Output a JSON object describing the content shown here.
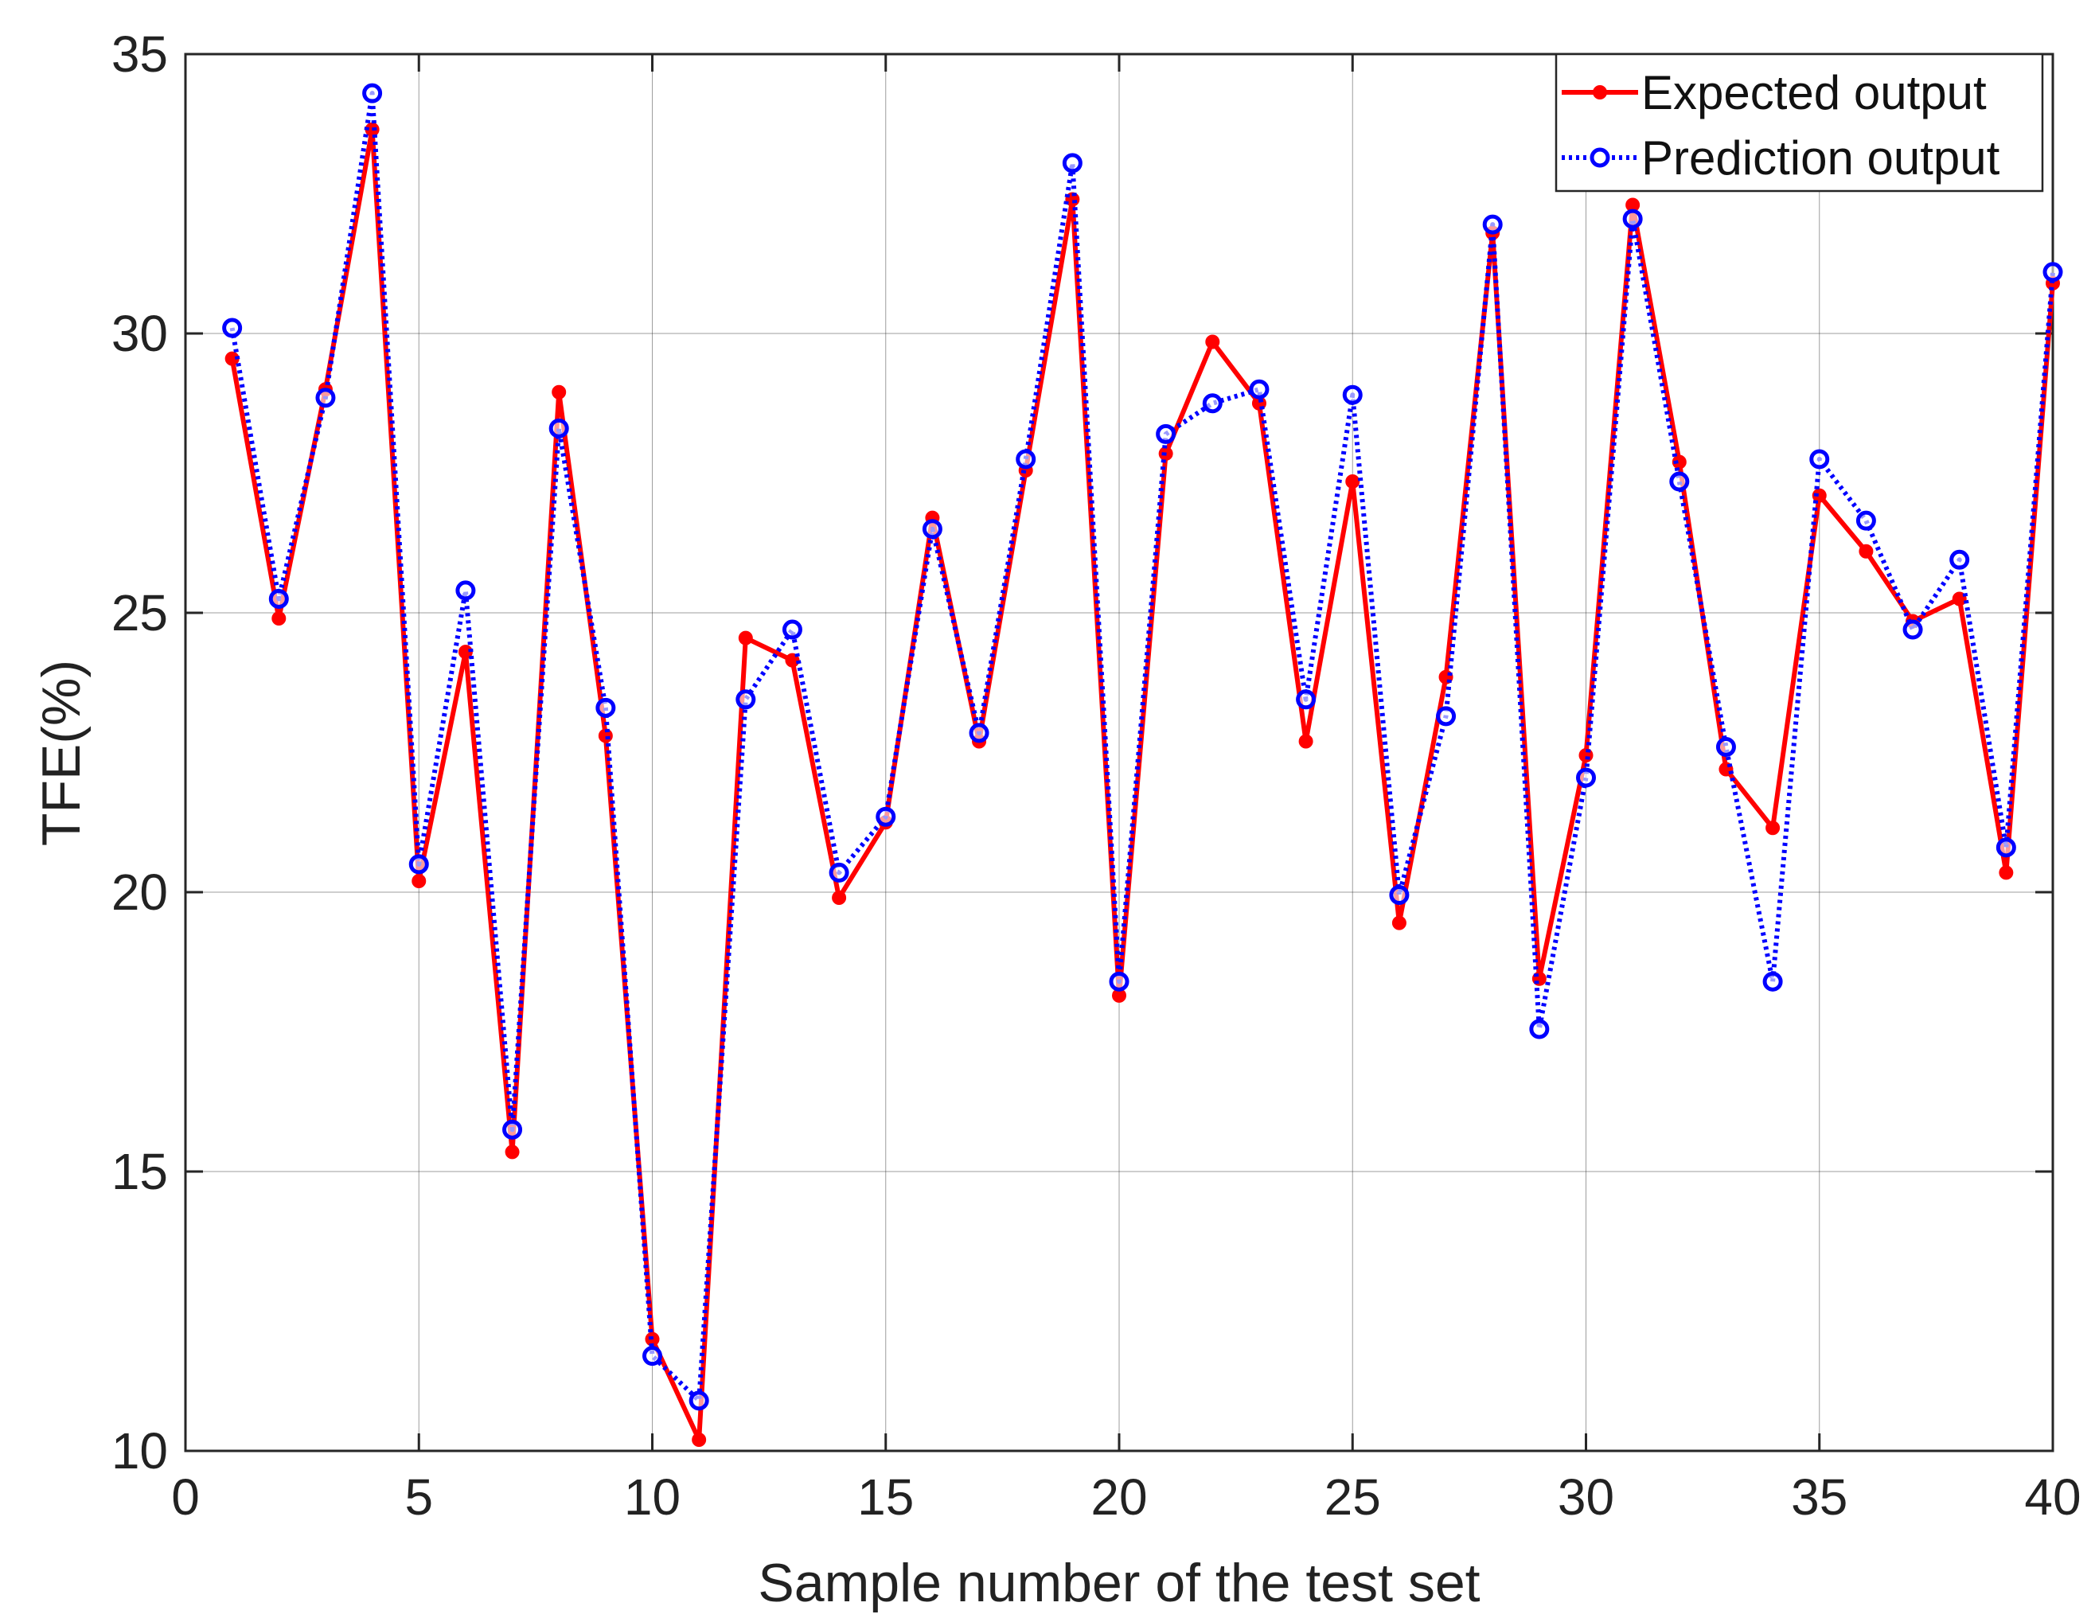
{
  "chart_data": {
    "type": "line",
    "title": "",
    "xlabel": "Sample number of the test set",
    "ylabel": "TFE(%)",
    "xlim": [
      0,
      40
    ],
    "ylim": [
      10,
      35
    ],
    "xticks": [
      "0",
      "5",
      "10",
      "15",
      "20",
      "25",
      "30",
      "35",
      "40"
    ],
    "yticks": [
      "10",
      "15",
      "20",
      "25",
      "30",
      "35"
    ],
    "legend_position": "top-right",
    "x": [
      1,
      2,
      3,
      4,
      5,
      6,
      7,
      8,
      9,
      10,
      11,
      12,
      13,
      14,
      15,
      16,
      17,
      18,
      19,
      20,
      21,
      22,
      23,
      24,
      25,
      26,
      27,
      28,
      29,
      30,
      31,
      32,
      33,
      34,
      35,
      36,
      37,
      38,
      39,
      40
    ],
    "series": [
      {
        "name": "Expected output",
        "color": "#ff0000",
        "line_style": "solid",
        "marker": "filled-circle",
        "values": [
          29.55,
          24.9,
          29.0,
          33.65,
          20.2,
          24.3,
          15.35,
          28.95,
          22.8,
          12.0,
          10.2,
          24.55,
          24.15,
          19.9,
          21.25,
          26.7,
          22.7,
          27.55,
          32.4,
          18.15,
          27.85,
          29.85,
          28.75,
          22.7,
          27.35,
          19.45,
          23.85,
          31.8,
          18.45,
          22.45,
          32.3,
          27.7,
          22.2,
          21.15,
          27.1,
          26.1,
          24.85,
          25.25,
          20.35,
          30.9
        ]
      },
      {
        "name": "Prediction output",
        "color": "#0000ff",
        "line_style": "dotted",
        "marker": "open-circle",
        "values": [
          30.1,
          25.25,
          28.85,
          34.3,
          20.5,
          25.4,
          15.75,
          28.3,
          23.3,
          11.7,
          10.9,
          23.45,
          24.7,
          20.35,
          21.35,
          26.5,
          22.85,
          27.75,
          33.05,
          18.4,
          28.2,
          28.75,
          29.0,
          23.45,
          28.9,
          19.95,
          23.15,
          31.95,
          17.55,
          22.05,
          32.05,
          27.35,
          22.6,
          18.4,
          27.75,
          26.65,
          24.7,
          25.95,
          20.8,
          31.1
        ]
      }
    ]
  }
}
